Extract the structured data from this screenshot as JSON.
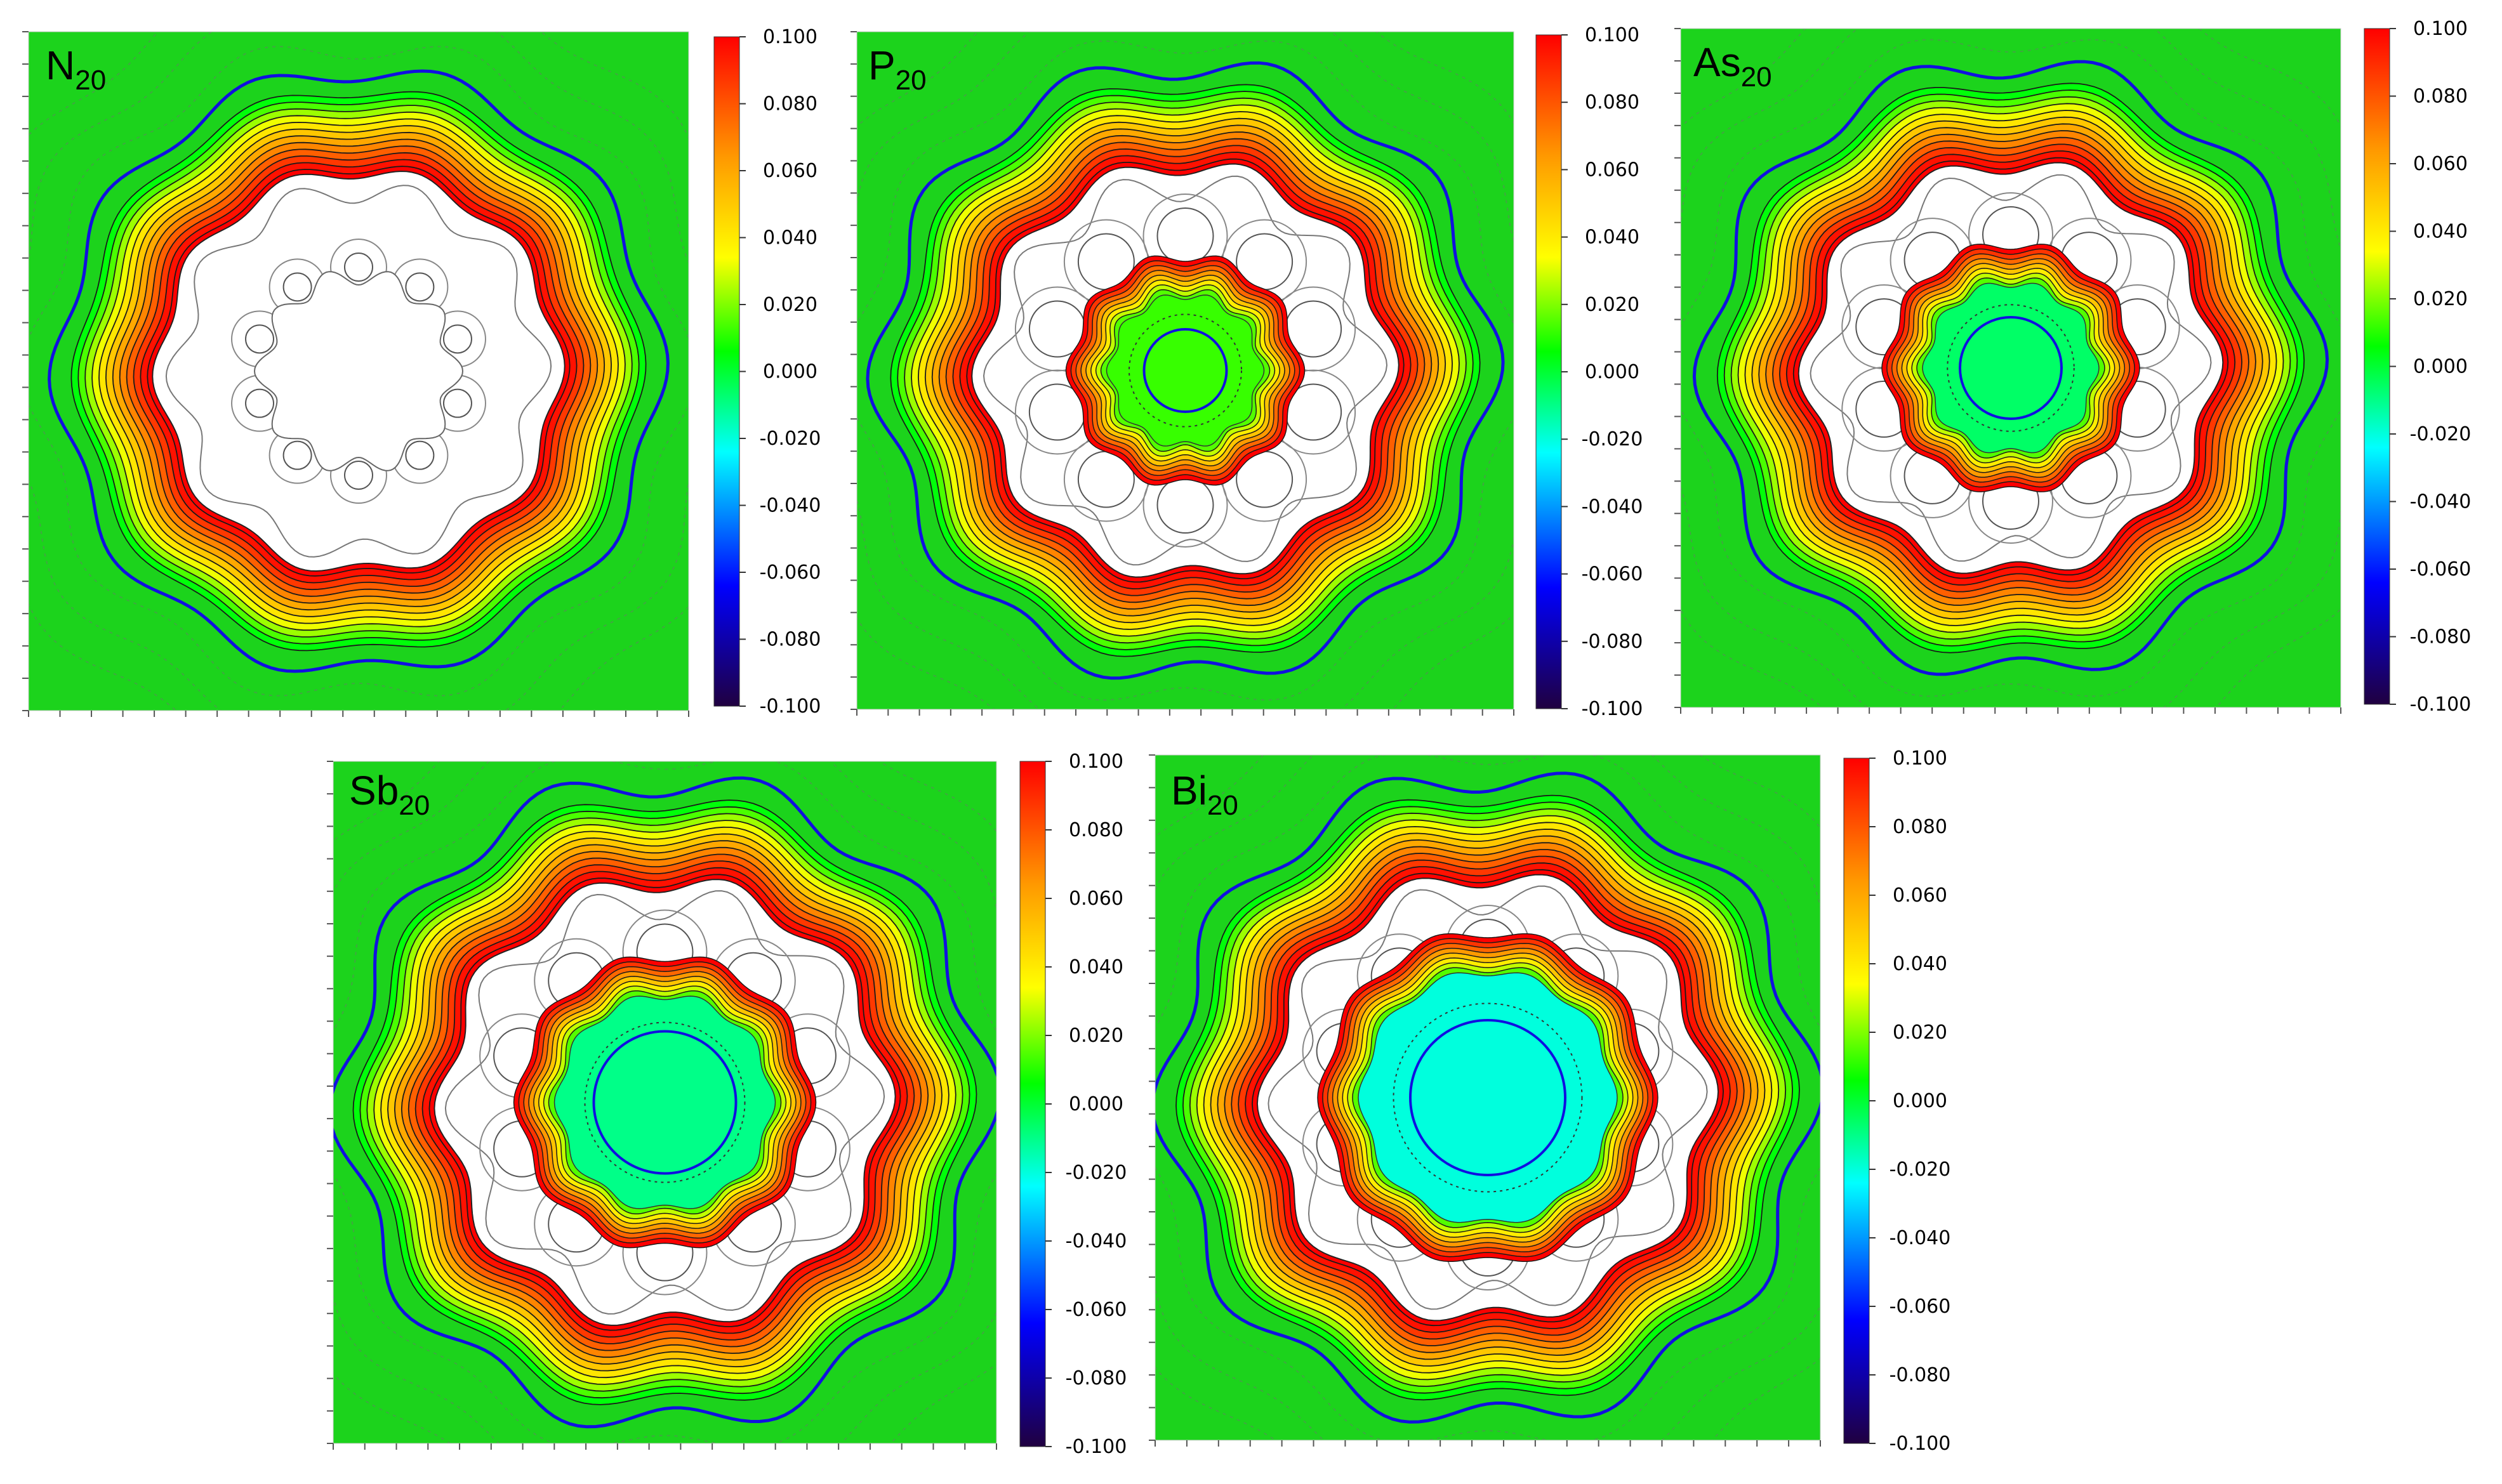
{
  "figure": {
    "panels": [
      {
        "element": "N",
        "count": "20"
      },
      {
        "element": "P",
        "count": "20"
      },
      {
        "element": "As",
        "count": "20"
      },
      {
        "element": "Sb",
        "count": "20"
      },
      {
        "element": "Bi",
        "count": "20"
      }
    ]
  },
  "chart_data": [
    {
      "type": "heatmap",
      "title": "N20",
      "colorbar": {
        "range": [
          -0.1,
          0.1
        ],
        "ticks": [
          "0.100",
          "0.080",
          "0.060",
          "0.040",
          "0.020",
          "0.000",
          "-0.020",
          "-0.040",
          "-0.060",
          "-0.080",
          "-0.100"
        ]
      },
      "inner_shell": false,
      "core_value": 0.0,
      "atoms_per_ring": 10
    },
    {
      "type": "heatmap",
      "title": "P20",
      "colorbar": {
        "range": [
          -0.1,
          0.1
        ],
        "ticks": [
          "0.100",
          "0.080",
          "0.060",
          "0.040",
          "0.020",
          "0.000",
          "-0.020",
          "-0.040",
          "-0.060",
          "-0.080",
          "-0.100"
        ]
      },
      "inner_shell": true,
      "core_value": 0.012,
      "atoms_per_ring": 10
    },
    {
      "type": "heatmap",
      "title": "As20",
      "colorbar": {
        "range": [
          -0.1,
          0.1
        ],
        "ticks": [
          "0.100",
          "0.080",
          "0.060",
          "0.040",
          "0.020",
          "0.000",
          "-0.020",
          "-0.040",
          "-0.060",
          "-0.080",
          "-0.100"
        ]
      },
      "inner_shell": true,
      "core_value": -0.006,
      "atoms_per_ring": 10
    },
    {
      "type": "heatmap",
      "title": "Sb20",
      "colorbar": {
        "range": [
          -0.1,
          0.1
        ],
        "ticks": [
          "0.100",
          "0.080",
          "0.060",
          "0.040",
          "0.020",
          "0.000",
          "-0.020",
          "-0.040",
          "-0.060",
          "-0.080",
          "-0.100"
        ]
      },
      "inner_shell": true,
      "core_value": -0.01,
      "atoms_per_ring": 10
    },
    {
      "type": "heatmap",
      "title": "Bi20",
      "colorbar": {
        "range": [
          -0.1,
          0.1
        ],
        "ticks": [
          "0.100",
          "0.080",
          "0.060",
          "0.040",
          "0.020",
          "0.000",
          "-0.020",
          "-0.040",
          "-0.060",
          "-0.080",
          "-0.100"
        ]
      },
      "inner_shell": true,
      "core_value": -0.02,
      "atoms_per_ring": 10
    }
  ],
  "colors": {
    "field": "#1cd31c",
    "red": "#ff1a00",
    "contour": "#333333",
    "boundary": "#1010e0",
    "colorbar_stops": [
      "#ff0000",
      "#ff9900",
      "#ffff00",
      "#00ff00",
      "#00ffff",
      "#0000ff",
      "#200040"
    ]
  }
}
